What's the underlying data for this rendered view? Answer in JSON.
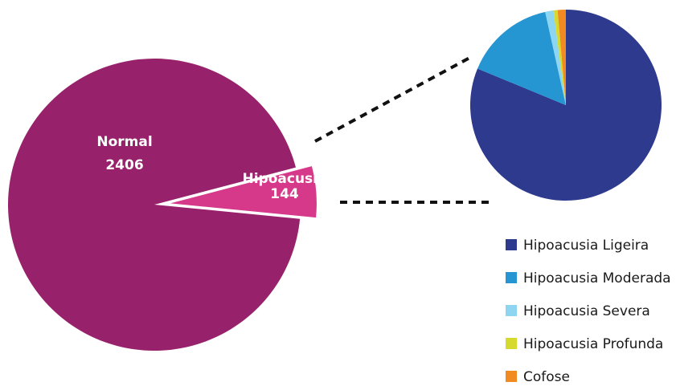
{
  "chart_data": [
    {
      "type": "pie",
      "categories": [
        "Normal",
        "Hipoacusia"
      ],
      "values": [
        2406,
        144
      ],
      "exploded": "Hipoacusia",
      "colors": [
        "#97216B",
        "#D6388A"
      ]
    },
    {
      "type": "pie",
      "categories": [
        "Hipoacusia Ligeira",
        "Hipoacusia Moderada",
        "Hipoacusia Severa",
        "Hipoacusia Profunda",
        "Cofose"
      ],
      "values": [
        117,
        22,
        2,
        1,
        2
      ],
      "colors": [
        "#2E3A8E",
        "#2696D3",
        "#8ED5F1",
        "#D7DA2E",
        "#F28A22"
      ],
      "legend_position": "bottom-right"
    }
  ]
}
